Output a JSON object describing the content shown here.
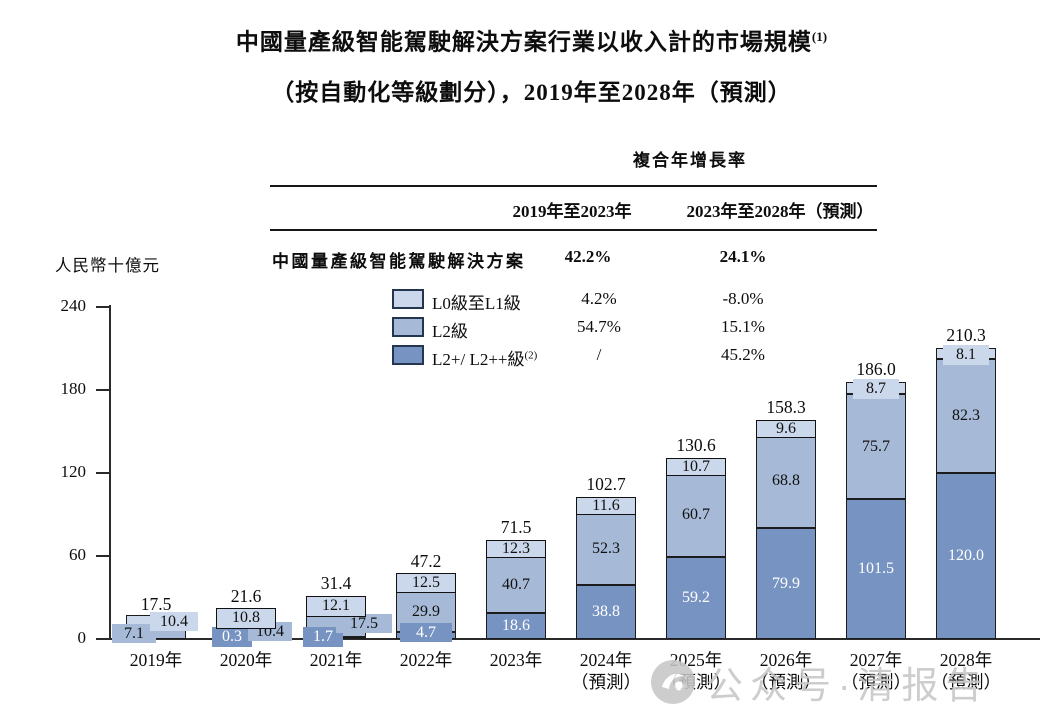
{
  "title": {
    "line1": "中國量產級智能駕駛解決方案行業以收入計的市場規模",
    "line1_sup": "(1)",
    "line2": "（按自動化等級劃分），2019年至2028年（預測）"
  },
  "cagr_table": {
    "header": "複合年增長率",
    "col1": "2019年至2023年",
    "col2": "2023年至2028年（預測）",
    "rows": [
      {
        "label": "中國量產級智能駕駛解決方案",
        "v1": "42.2%",
        "v2": "24.1%"
      },
      {
        "label": "L0級至L1級",
        "sup": "",
        "v1": "4.2%",
        "v2": "-8.0%",
        "swatch": "light"
      },
      {
        "label": "L2級",
        "sup": "",
        "v1": "54.7%",
        "v2": "15.1%",
        "swatch": "medium"
      },
      {
        "label": "L2+/ L2++級",
        "sup": "(2)",
        "v1": "/",
        "v2": "45.2%",
        "swatch": "dark"
      }
    ]
  },
  "chart_data": {
    "type": "bar",
    "subtype": "stacked",
    "unit_label": "人民幣十億元",
    "ylabel": "人民幣十億元",
    "ylim": [
      0,
      240
    ],
    "y_ticks": [
      0,
      60,
      120,
      180,
      240
    ],
    "grid": false,
    "legend_position": "top-left-table",
    "categories": [
      "2019年",
      "2020年",
      "2021年",
      "2022年",
      "2023年",
      "2024年",
      "2025年",
      "2026年",
      "2027年",
      "2028年"
    ],
    "forecast_suffix": "（預測）",
    "forecast_from_index": 5,
    "series": [
      {
        "name": "L2+/ L2++級(2)",
        "color": "#7793c1",
        "values": [
          null,
          0.3,
          1.7,
          4.7,
          18.6,
          38.8,
          59.2,
          79.9,
          101.5,
          120.0
        ]
      },
      {
        "name": "L2級",
        "color": "#a6b9d7",
        "values": [
          7.1,
          10.4,
          17.5,
          29.9,
          40.7,
          52.3,
          60.7,
          68.8,
          75.7,
          82.3
        ]
      },
      {
        "name": "L0級至L1級",
        "color": "#cbd7ea",
        "values": [
          10.4,
          10.8,
          12.1,
          12.5,
          12.3,
          11.6,
          10.7,
          9.6,
          8.7,
          8.1
        ]
      }
    ],
    "totals": [
      "17.5",
      "21.6",
      "31.4",
      "47.2",
      "71.5",
      "102.7",
      "130.6",
      "158.3",
      "186.0",
      "210.3"
    ]
  },
  "colors": {
    "light": "#cbd7ea",
    "medium": "#a6b9d7",
    "dark": "#7793c1",
    "axis": "#2a2a2a",
    "watermark": "#c7c7c7"
  },
  "watermark": {
    "text": "公众号·清报告"
  }
}
